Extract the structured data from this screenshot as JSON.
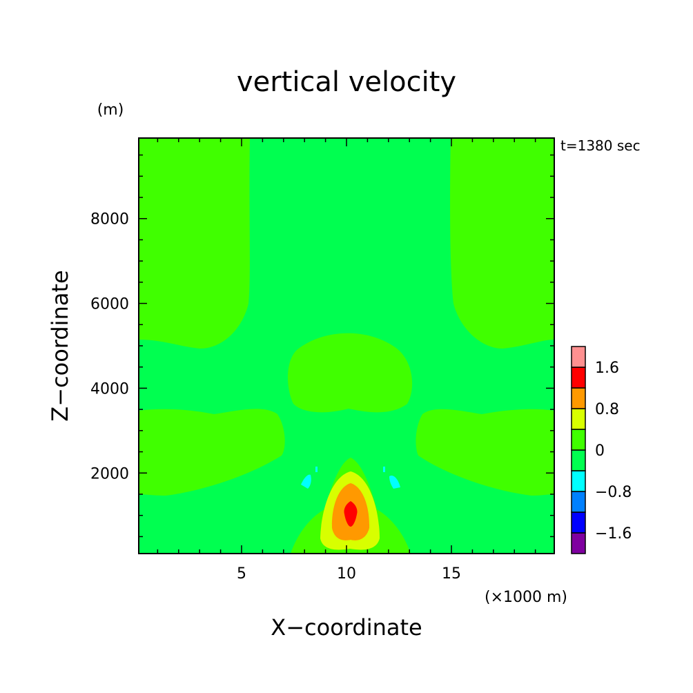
{
  "chart_data": {
    "type": "contour",
    "title": "vertical velocity",
    "xlabel": "X−coordinate",
    "ylabel": "Z−coordinate",
    "x_unit": "(×1000 m)",
    "y_unit": "(m)",
    "time_label": "t=1380 sec",
    "xlim": [
      0.1,
      19.9
    ],
    "ylim": [
      100,
      9900
    ],
    "x_ticks": [
      5,
      10,
      15
    ],
    "x_tick_labels": [
      "5",
      "10",
      "15"
    ],
    "y_ticks": [
      2000,
      4000,
      6000,
      8000
    ],
    "y_tick_labels": [
      "2000",
      "4000",
      "6000",
      "8000"
    ],
    "grid": false,
    "legend_position": "right",
    "colorbar": {
      "levels": [
        -2.0,
        -1.6,
        -1.2,
        -0.8,
        -0.4,
        0.0,
        0.4,
        0.8,
        1.2,
        1.6,
        2.0
      ],
      "colors": [
        "#7f00a0",
        "#0000ff",
        "#0080ff",
        "#00ffff",
        "#00ff50",
        "#40ff00",
        "#d8ff00",
        "#ff9900",
        "#ff0000",
        "#ff9090"
      ],
      "tick_labels": [
        "−1.6",
        "−0.8",
        "0",
        "0.8",
        "1.6"
      ],
      "tick_values": [
        -1.6,
        -0.8,
        0.0,
        0.8,
        1.6
      ]
    },
    "regions": [
      {
        "name": "updraft core",
        "x_range": [
          9.8,
          10.6
        ],
        "z_range": [
          700,
          1300
        ],
        "w_range": [
          1.2,
          1.6
        ]
      },
      {
        "name": "updraft",
        "x_range": [
          8.6,
          11.3
        ],
        "z_range": [
          100,
          2300
        ],
        "w_range": [
          0.0,
          1.2
        ]
      },
      {
        "name": "downdraft left",
        "x": 8.0,
        "z": 1700,
        "w_range": [
          -0.8,
          -0.4
        ]
      },
      {
        "name": "downdraft right",
        "x": 12.2,
        "z": 1700,
        "w_range": [
          -0.8,
          -0.4
        ]
      },
      {
        "name": "mid-level lobe",
        "x_range": [
          7.3,
          12.9
        ],
        "z_range": [
          3400,
          5300
        ],
        "w_range": [
          0.0,
          0.4
        ]
      }
    ]
  }
}
